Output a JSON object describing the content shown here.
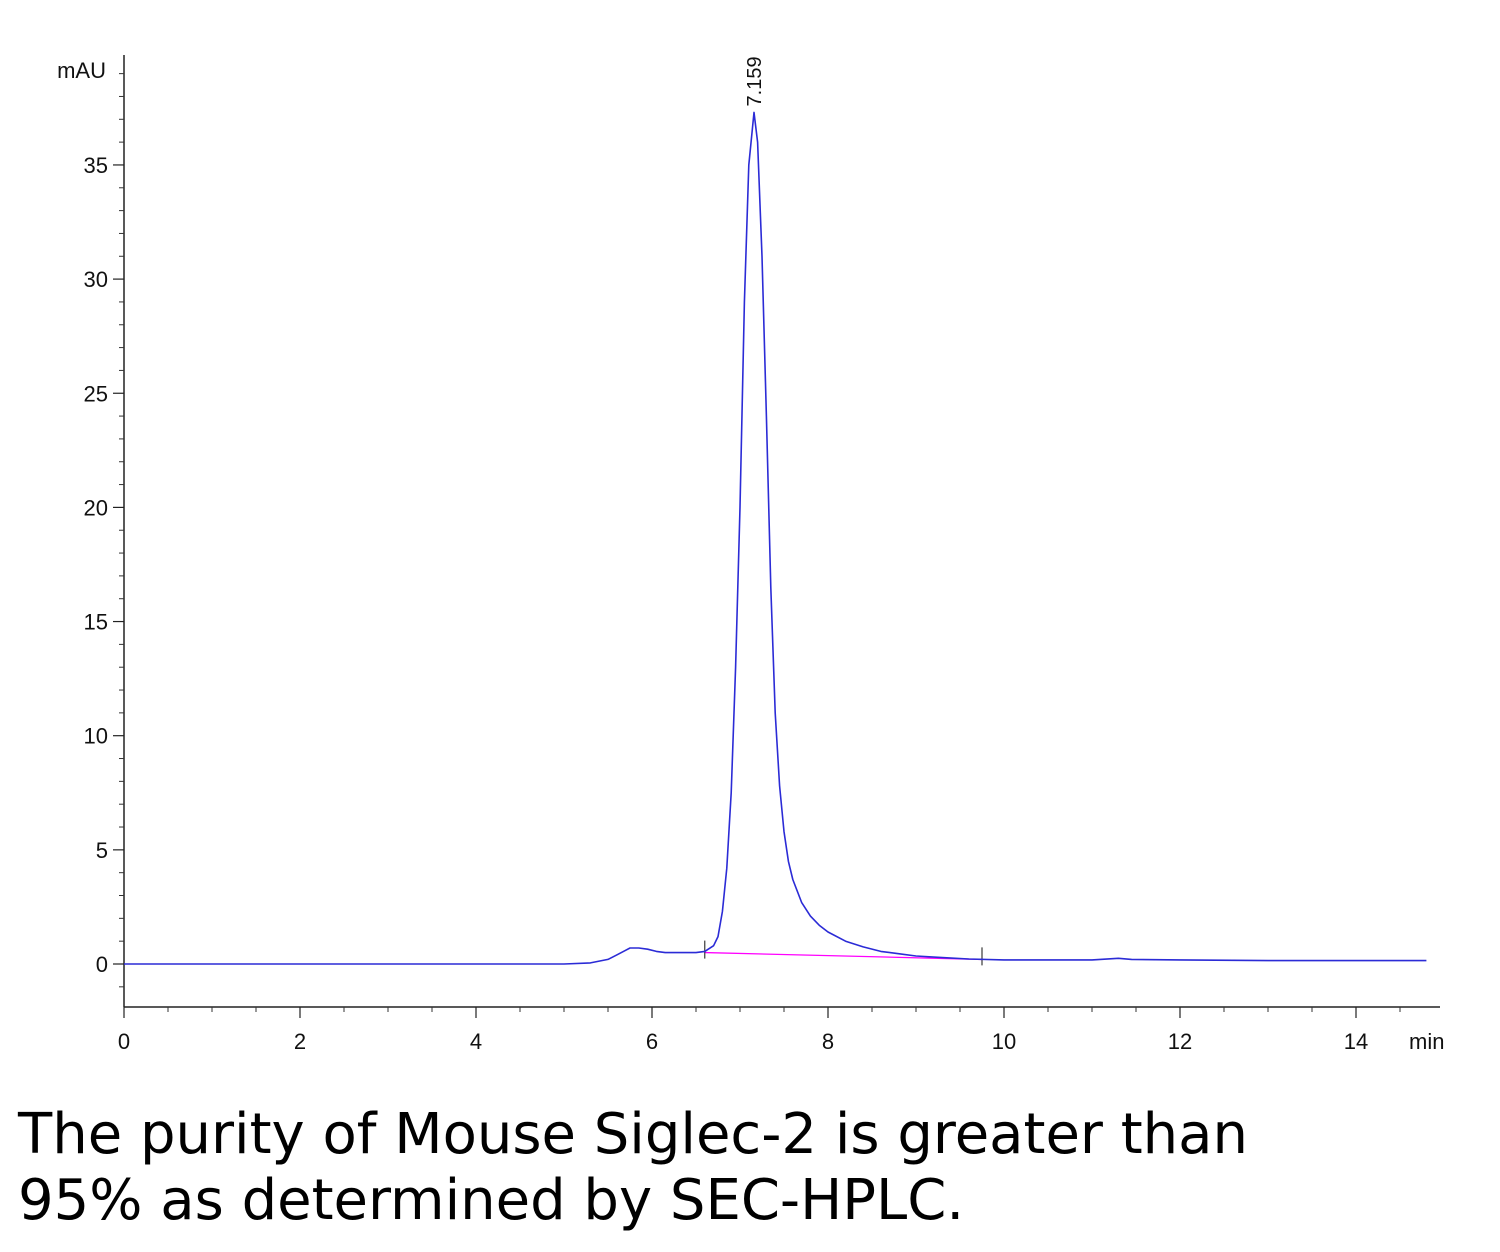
{
  "chart_data": {
    "type": "line",
    "title": "",
    "xlabel": "",
    "ylabel": "",
    "x_unit": "min",
    "y_unit": "mAU",
    "xlim": [
      0,
      14.8
    ],
    "ylim": [
      -1.9,
      39.5
    ],
    "x_ticks": [
      0,
      2,
      4,
      6,
      8,
      10,
      12,
      14
    ],
    "y_ticks": [
      0,
      5,
      10,
      15,
      20,
      25,
      30,
      35
    ],
    "grid": false,
    "legend": "none",
    "series": [
      {
        "color": "#2b2bd6",
        "x": [
          0,
          1,
          2,
          3,
          4,
          5,
          5.3,
          5.5,
          5.6,
          5.7,
          5.75,
          5.85,
          5.95,
          6.05,
          6.15,
          6.3,
          6.5,
          6.6,
          6.7,
          6.75,
          6.8,
          6.85,
          6.9,
          6.95,
          7.0,
          7.05,
          7.1,
          7.159,
          7.2,
          7.25,
          7.3,
          7.35,
          7.4,
          7.45,
          7.5,
          7.55,
          7.6,
          7.7,
          7.8,
          7.9,
          8.0,
          8.2,
          8.4,
          8.6,
          8.8,
          9.0,
          9.3,
          9.6,
          10.0,
          11.0,
          11.3,
          11.45,
          12.0,
          13.0,
          14.0,
          14.8
        ],
        "y": [
          0.0,
          0.0,
          0.0,
          0.0,
          0.0,
          0.0,
          0.05,
          0.2,
          0.4,
          0.6,
          0.7,
          0.7,
          0.65,
          0.55,
          0.5,
          0.5,
          0.5,
          0.55,
          0.8,
          1.2,
          2.3,
          4.2,
          7.5,
          13.0,
          20.0,
          29.0,
          35.0,
          37.3,
          36.0,
          31.0,
          24.0,
          16.5,
          11.0,
          7.8,
          5.8,
          4.5,
          3.7,
          2.7,
          2.1,
          1.7,
          1.4,
          1.0,
          0.75,
          0.55,
          0.45,
          0.35,
          0.28,
          0.22,
          0.18,
          0.18,
          0.25,
          0.2,
          0.18,
          0.15,
          0.15,
          0.15
        ]
      }
    ],
    "baseline": {
      "color": "#ff00ff",
      "x": [
        6.6,
        9.75
      ],
      "y": [
        0.5,
        0.2
      ]
    },
    "markers": [
      {
        "x": 6.6,
        "label": ""
      },
      {
        "x": 9.75,
        "label": ""
      }
    ],
    "peaks": [
      {
        "x": 7.159,
        "y": 37.3,
        "label": "7.159"
      }
    ]
  },
  "caption": {
    "line1": "The purity of Mouse Siglec-2 is greater than",
    "line2": "95% as determined by SEC-HPLC."
  }
}
